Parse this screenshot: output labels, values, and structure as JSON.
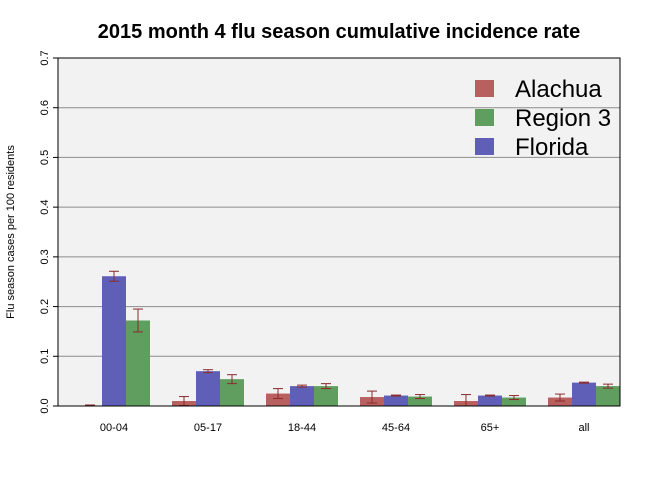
{
  "chart_data": {
    "type": "bar",
    "title": "2015 month 4 flu season cumulative incidence rate",
    "xlabel": "",
    "ylabel": "Flu season cases per 100 residents",
    "ylim": [
      0,
      0.7
    ],
    "yticks": [
      "0.0",
      "0.1",
      "0.2",
      "0.3",
      "0.4",
      "0.5",
      "0.6",
      "0.7"
    ],
    "categories": [
      "00-04",
      "05-17",
      "18-44",
      "45-64",
      "65+",
      "all"
    ],
    "series": [
      {
        "name": "Alachua",
        "color": "#b85f5f",
        "values": [
          0.0,
          0.01,
          0.025,
          0.018,
          0.01,
          0.017
        ],
        "err": [
          0.002,
          0.009,
          0.01,
          0.012,
          0.013,
          0.007
        ]
      },
      {
        "name": "Region 3",
        "color": "#5f9e5f",
        "values": [
          0.172,
          0.054,
          0.04,
          0.019,
          0.017,
          0.04
        ],
        "err": [
          0.023,
          0.009,
          0.005,
          0.004,
          0.004,
          0.004
        ]
      },
      {
        "name": "Florida",
        "color": "#5f5fb8",
        "values": [
          0.261,
          0.07,
          0.04,
          0.021,
          0.021,
          0.047
        ],
        "err": [
          0.01,
          0.003,
          0.002,
          0.001,
          0.001,
          0.001
        ]
      }
    ],
    "bar_order": [
      "Alachua",
      "Florida",
      "Region 3"
    ],
    "legend_order": [
      "Alachua",
      "Region 3",
      "Florida"
    ],
    "legend_position": "top-right",
    "grid": true,
    "background": "#f2f2f2",
    "gridline_color": "#8c8c8c",
    "errorbar_color": "#8b2a2a"
  }
}
